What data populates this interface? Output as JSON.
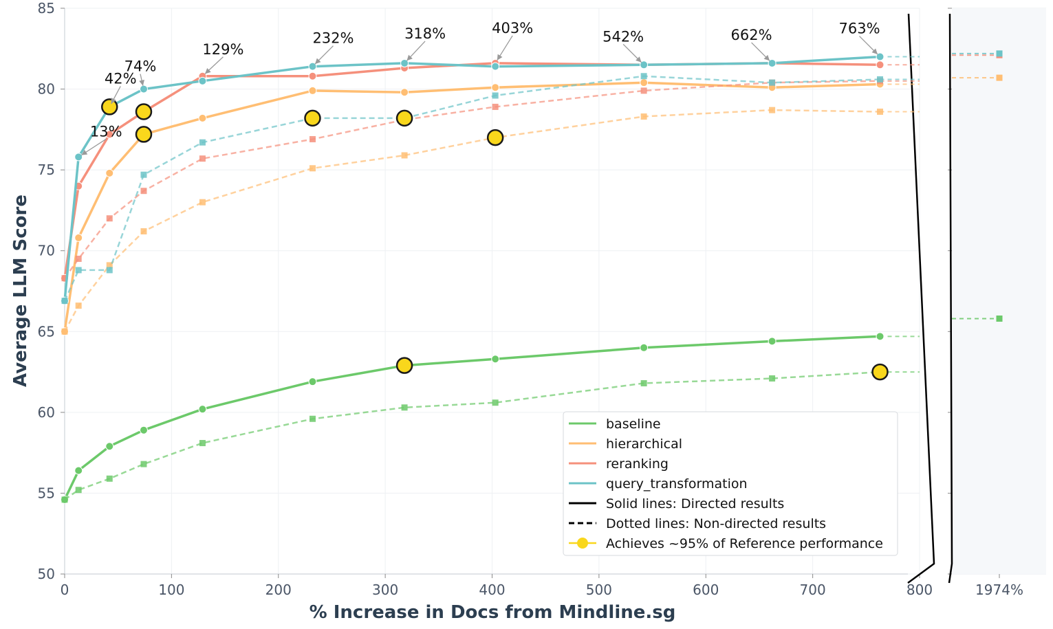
{
  "chart_data": {
    "type": "line",
    "xlabel": "% Increase in Docs from Mindline.sg",
    "ylabel": "Average LLM Score",
    "xlim": [
      0,
      800
    ],
    "ylim": [
      50,
      85
    ],
    "x_ticks": [
      "0",
      "100",
      "200",
      "300",
      "400",
      "500",
      "600",
      "700",
      "800"
    ],
    "y_ticks": [
      "50",
      "55",
      "60",
      "65",
      "70",
      "75",
      "80",
      "85"
    ],
    "broken_axis_label": "1974%",
    "x": [
      0,
      13,
      42,
      74,
      129,
      232,
      318,
      403,
      542,
      662,
      763
    ],
    "series": [
      {
        "name": "baseline",
        "style": "solid",
        "color": "#6cc96a",
        "values": [
          54.6,
          56.4,
          57.9,
          58.9,
          60.2,
          61.9,
          62.9,
          63.3,
          64.0,
          64.4,
          64.7
        ],
        "extended": 64.7,
        "highlight_x": [
          318
        ]
      },
      {
        "name": "baseline",
        "style": "dashed",
        "color": "#6cc96a",
        "values": [
          54.6,
          55.2,
          55.9,
          56.8,
          58.1,
          59.6,
          60.3,
          60.6,
          61.8,
          62.1,
          62.5
        ],
        "extended": 62.5,
        "broken_value": 65.8,
        "highlight_x": [
          763
        ]
      },
      {
        "name": "hierarchical",
        "style": "solid",
        "color": "#ffbe73",
        "values": [
          65.0,
          70.8,
          74.8,
          77.2,
          78.2,
          79.9,
          79.8,
          80.1,
          80.4,
          80.1,
          80.3
        ],
        "extended": 80.3,
        "highlight_x": [
          74
        ]
      },
      {
        "name": "hierarchical",
        "style": "dashed",
        "color": "#ffbe73",
        "values": [
          65.0,
          66.6,
          69.1,
          71.2,
          73.0,
          75.1,
          75.9,
          77.0,
          78.3,
          78.7,
          78.6
        ],
        "extended": 78.6,
        "broken_value": 80.7,
        "highlight_x": [
          403
        ]
      },
      {
        "name": "reranking",
        "style": "solid",
        "color": "#f5907c",
        "values": [
          68.3,
          74.0,
          77.2,
          78.6,
          80.8,
          80.8,
          81.3,
          81.6,
          81.5,
          81.6,
          81.5
        ],
        "extended": 81.5,
        "highlight_x": [
          74
        ]
      },
      {
        "name": "reranking",
        "style": "dashed",
        "color": "#f5907c",
        "values": [
          68.3,
          69.5,
          72.0,
          73.7,
          75.7,
          76.9,
          78.1,
          78.9,
          79.9,
          80.4,
          80.5
        ],
        "extended": 80.5,
        "broken_value": 82.1,
        "highlight_x": []
      },
      {
        "name": "query_transformation",
        "style": "solid",
        "color": "#6cc3c7",
        "values": [
          66.9,
          75.8,
          78.9,
          80.0,
          80.5,
          81.4,
          81.6,
          81.4,
          81.5,
          81.6,
          82.0
        ],
        "extended": 82.0,
        "highlight_x": [
          42
        ]
      },
      {
        "name": "query_transformation",
        "style": "dashed",
        "color": "#6cc3c7",
        "values": [
          66.9,
          68.8,
          68.8,
          74.7,
          76.7,
          78.2,
          78.2,
          79.6,
          80.8,
          80.4,
          80.6
        ],
        "extended": 80.6,
        "broken_value": 82.2,
        "highlight_x": [
          232,
          318
        ]
      }
    ],
    "annotations": [
      {
        "text": "13%",
        "x": 13,
        "y": 75.8
      },
      {
        "text": "42%",
        "x": 42,
        "y": 78.9
      },
      {
        "text": "74%",
        "x": 74,
        "y": 80.0
      },
      {
        "text": "129%",
        "x": 129,
        "y": 80.8
      },
      {
        "text": "232%",
        "x": 232,
        "y": 81.4
      },
      {
        "text": "318%",
        "x": 318,
        "y": 81.6
      },
      {
        "text": "403%",
        "x": 403,
        "y": 81.6
      },
      {
        "text": "542%",
        "x": 542,
        "y": 81.5
      },
      {
        "text": "662%",
        "x": 662,
        "y": 81.6
      },
      {
        "text": "763%",
        "x": 763,
        "y": 82.0
      }
    ],
    "legend": {
      "position": "lower-right",
      "entries": [
        {
          "label": "baseline",
          "kind": "line",
          "color": "#6cc96a"
        },
        {
          "label": "hierarchical",
          "kind": "line",
          "color": "#ffbe73"
        },
        {
          "label": "reranking",
          "kind": "line",
          "color": "#f5907c"
        },
        {
          "label": "query_transformation",
          "kind": "line",
          "color": "#6cc3c7"
        },
        {
          "label": "Solid lines: Directed results",
          "kind": "solid",
          "color": "#000000"
        },
        {
          "label": "Dotted lines: Non-directed results",
          "kind": "dashed",
          "color": "#000000"
        },
        {
          "label": "Achieves ~95% of Reference performance",
          "kind": "marker",
          "color": "#f9d71c"
        }
      ]
    },
    "highlight_color": "#f9d71c",
    "grid": true
  }
}
